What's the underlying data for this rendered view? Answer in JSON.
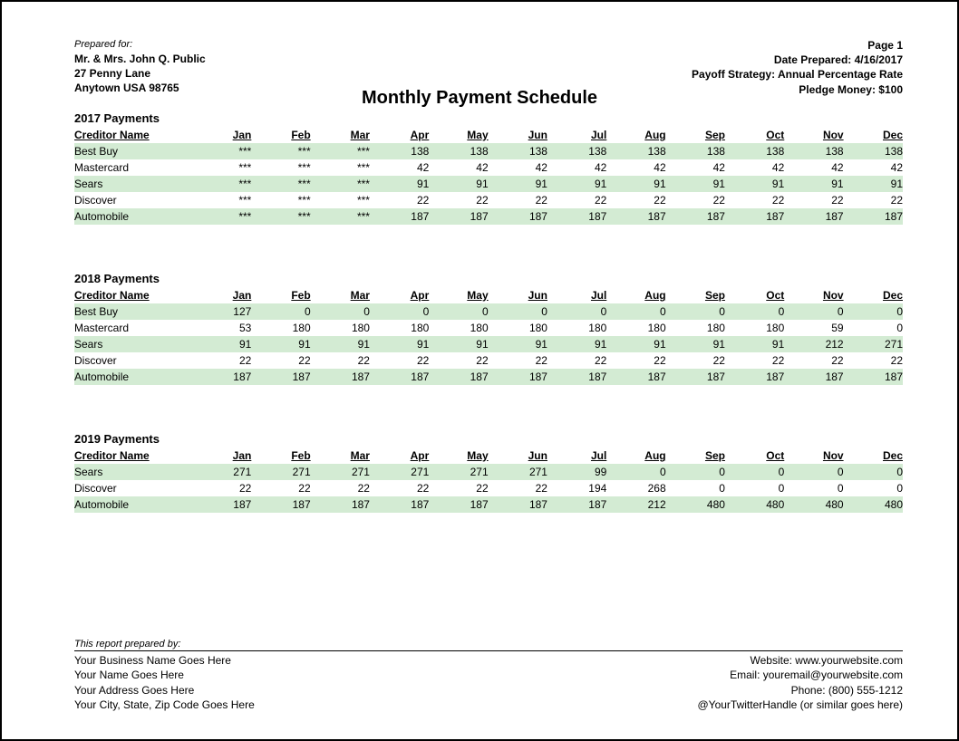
{
  "header": {
    "prepared_for_label": "Prepared for:",
    "client_name": "Mr. & Mrs. John Q. Public",
    "address1": "27 Penny Lane",
    "address2": "Anytown USA 98765",
    "page_label": "Page 1",
    "date_prepared": "Date Prepared:  4/16/2017",
    "payoff_strategy": "Payoff Strategy: Annual Percentage Rate",
    "pledge_money": "Pledge Money:  $100"
  },
  "title": "Monthly Payment Schedule",
  "columns": {
    "creditor": "Creditor Name",
    "months": [
      "Jan",
      "Feb",
      "Mar",
      "Apr",
      "May",
      "Jun",
      "Jul",
      "Aug",
      "Sep",
      "Oct",
      "Nov",
      "Dec"
    ]
  },
  "colors": {
    "row_shade": "#d3ebd3",
    "page_border": "#000000",
    "text": "#000000",
    "background": "#ffffff"
  },
  "sections": [
    {
      "title": "2017 Payments",
      "rows": [
        {
          "name": "Best Buy",
          "shade": true,
          "v": [
            "***",
            "***",
            "***",
            "138",
            "138",
            "138",
            "138",
            "138",
            "138",
            "138",
            "138",
            "138"
          ]
        },
        {
          "name": "Mastercard",
          "shade": false,
          "v": [
            "***",
            "***",
            "***",
            "42",
            "42",
            "42",
            "42",
            "42",
            "42",
            "42",
            "42",
            "42"
          ]
        },
        {
          "name": "Sears",
          "shade": true,
          "v": [
            "***",
            "***",
            "***",
            "91",
            "91",
            "91",
            "91",
            "91",
            "91",
            "91",
            "91",
            "91"
          ]
        },
        {
          "name": "Discover",
          "shade": false,
          "v": [
            "***",
            "***",
            "***",
            "22",
            "22",
            "22",
            "22",
            "22",
            "22",
            "22",
            "22",
            "22"
          ]
        },
        {
          "name": "Automobile",
          "shade": true,
          "v": [
            "***",
            "***",
            "***",
            "187",
            "187",
            "187",
            "187",
            "187",
            "187",
            "187",
            "187",
            "187"
          ]
        }
      ]
    },
    {
      "title": "2018 Payments",
      "rows": [
        {
          "name": "Best Buy",
          "shade": true,
          "v": [
            "127",
            "0",
            "0",
            "0",
            "0",
            "0",
            "0",
            "0",
            "0",
            "0",
            "0",
            "0"
          ]
        },
        {
          "name": "Mastercard",
          "shade": false,
          "v": [
            "53",
            "180",
            "180",
            "180",
            "180",
            "180",
            "180",
            "180",
            "180",
            "180",
            "59",
            "0"
          ]
        },
        {
          "name": "Sears",
          "shade": true,
          "v": [
            "91",
            "91",
            "91",
            "91",
            "91",
            "91",
            "91",
            "91",
            "91",
            "91",
            "212",
            "271"
          ]
        },
        {
          "name": "Discover",
          "shade": false,
          "v": [
            "22",
            "22",
            "22",
            "22",
            "22",
            "22",
            "22",
            "22",
            "22",
            "22",
            "22",
            "22"
          ]
        },
        {
          "name": "Automobile",
          "shade": true,
          "v": [
            "187",
            "187",
            "187",
            "187",
            "187",
            "187",
            "187",
            "187",
            "187",
            "187",
            "187",
            "187"
          ]
        }
      ]
    },
    {
      "title": "2019 Payments",
      "rows": [
        {
          "name": "Sears",
          "shade": true,
          "v": [
            "271",
            "271",
            "271",
            "271",
            "271",
            "271",
            "99",
            "0",
            "0",
            "0",
            "0",
            "0"
          ]
        },
        {
          "name": "Discover",
          "shade": false,
          "v": [
            "22",
            "22",
            "22",
            "22",
            "22",
            "22",
            "194",
            "268",
            "0",
            "0",
            "0",
            "0"
          ]
        },
        {
          "name": "Automobile",
          "shade": true,
          "v": [
            "187",
            "187",
            "187",
            "187",
            "187",
            "187",
            "187",
            "212",
            "480",
            "480",
            "480",
            "480"
          ]
        }
      ]
    }
  ],
  "footer": {
    "title": "This report prepared by:",
    "left": [
      "Your Business Name Goes Here",
      "Your Name Goes Here",
      "Your Address Goes Here",
      "Your City, State, Zip Code Goes Here"
    ],
    "right": [
      "Website: www.yourwebsite.com",
      "Email: youremail@yourwebsite.com",
      "Phone: (800) 555-1212",
      "@YourTwitterHandle (or similar goes here)"
    ]
  }
}
